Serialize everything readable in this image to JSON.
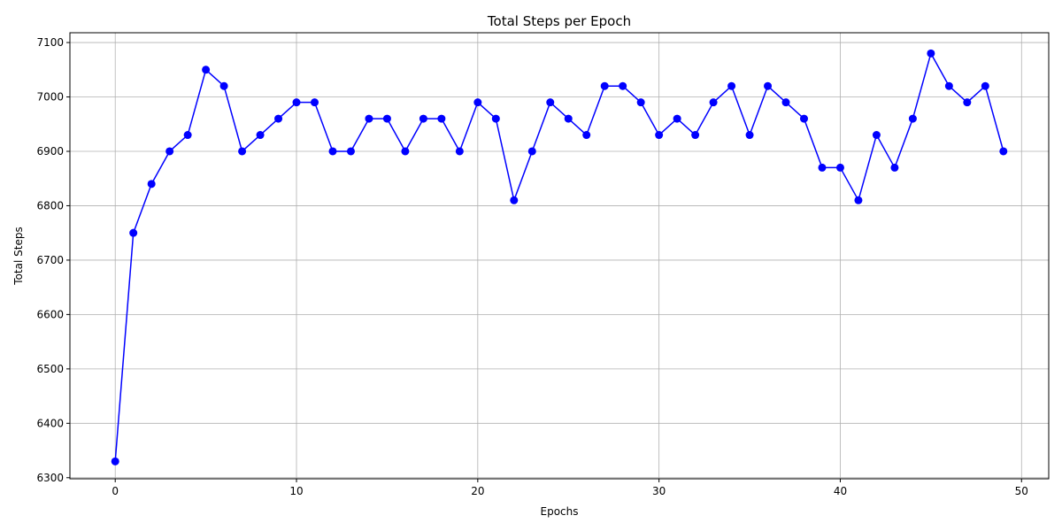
{
  "chart_data": {
    "type": "line",
    "title": "Total Steps per Epoch",
    "xlabel": "Epochs",
    "ylabel": "Total Steps",
    "xlim": [
      -2.5,
      51.5
    ],
    "ylim": [
      6298,
      7118
    ],
    "xticks": [
      0,
      10,
      20,
      30,
      40,
      50
    ],
    "yticks": [
      6300,
      6400,
      6500,
      6600,
      6700,
      6800,
      6900,
      7000,
      7100
    ],
    "grid": true,
    "series": [
      {
        "color": "#0000ff",
        "marker": "circle",
        "x": [
          0,
          1,
          2,
          3,
          4,
          5,
          6,
          7,
          8,
          9,
          10,
          11,
          12,
          13,
          14,
          15,
          16,
          17,
          18,
          19,
          20,
          21,
          22,
          23,
          24,
          25,
          26,
          27,
          28,
          29,
          30,
          31,
          32,
          33,
          34,
          35,
          36,
          37,
          38,
          39,
          40,
          41,
          42,
          43,
          44,
          45,
          46,
          47,
          48,
          49
        ],
        "values": [
          6330,
          6750,
          6840,
          6900,
          6930,
          7050,
          7020,
          6900,
          6930,
          6960,
          6990,
          6990,
          6900,
          6900,
          6960,
          6960,
          6900,
          6960,
          6960,
          6900,
          6990,
          6960,
          6810,
          6900,
          6990,
          6960,
          6930,
          7020,
          7020,
          6990,
          6930,
          6960,
          6930,
          6990,
          7020,
          6930,
          7020,
          6990,
          6960,
          6870,
          6870,
          6810,
          6930,
          6870,
          6960,
          7080,
          7020,
          6990,
          7020,
          6900
        ]
      }
    ]
  },
  "colors": {
    "line": "#0000ff",
    "grid": "#b0b0b0",
    "axes": "#000000"
  }
}
